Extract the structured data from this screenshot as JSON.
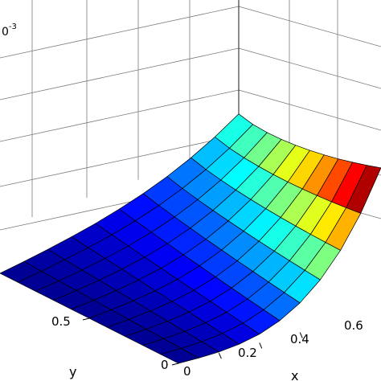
{
  "chart_data": {
    "type": "surface",
    "title": "",
    "xlabel": "x",
    "ylabel": "y",
    "zlabel": "",
    "z_exponent_label": {
      "base": "0",
      "exponent": "-3"
    },
    "x_ticks": [
      "0.2",
      "0.4",
      "0.6"
    ],
    "y_ticks": [
      "0",
      "0.5"
    ],
    "grid": true,
    "colormap": "jet",
    "grid_size": {
      "nx": 10,
      "ny": 10
    }
  }
}
